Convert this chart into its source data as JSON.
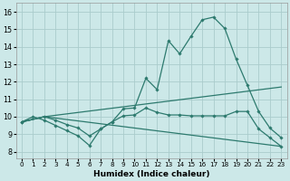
{
  "xlabel": "Humidex (Indice chaleur)",
  "background_color": "#cce8e8",
  "grid_color": "#aacccc",
  "line_color": "#2d7a6e",
  "x_ticks": [
    0,
    1,
    2,
    3,
    4,
    5,
    6,
    7,
    8,
    9,
    10,
    11,
    12,
    13,
    14,
    15,
    16,
    17,
    18,
    19,
    20,
    21,
    22,
    23
  ],
  "y_ticks": [
    8,
    9,
    10,
    11,
    12,
    13,
    14,
    15,
    16
  ],
  "xlim": [
    -0.5,
    23.5
  ],
  "ylim": [
    7.6,
    16.5
  ],
  "series": [
    {
      "x": [
        0,
        1,
        2,
        3,
        4,
        5,
        6,
        7,
        8,
        9,
        10,
        11,
        12,
        13,
        14,
        15,
        16,
        17,
        18,
        19,
        20,
        21,
        22,
        23
      ],
      "y": [
        9.7,
        10.0,
        9.8,
        9.5,
        9.2,
        8.9,
        8.35,
        9.3,
        9.7,
        10.45,
        10.5,
        12.2,
        11.55,
        14.35,
        13.6,
        14.6,
        15.55,
        15.7,
        15.05,
        13.3,
        11.8,
        10.3,
        9.35,
        8.8
      ]
    },
    {
      "x": [
        0,
        2,
        23
      ],
      "y": [
        9.7,
        10.0,
        11.7
      ]
    },
    {
      "x": [
        0,
        2,
        3,
        4,
        5,
        6,
        7,
        8,
        9,
        10,
        11,
        12,
        13,
        14,
        15,
        16,
        17,
        18,
        19,
        20,
        21,
        22,
        23
      ],
      "y": [
        9.7,
        10.0,
        9.8,
        9.55,
        9.35,
        8.9,
        9.3,
        9.7,
        10.05,
        10.1,
        10.5,
        10.25,
        10.1,
        10.1,
        10.05,
        10.05,
        10.05,
        10.05,
        10.3,
        10.3,
        9.3,
        8.8,
        8.3
      ]
    },
    {
      "x": [
        0,
        2,
        23
      ],
      "y": [
        9.7,
        10.0,
        8.3
      ]
    }
  ]
}
